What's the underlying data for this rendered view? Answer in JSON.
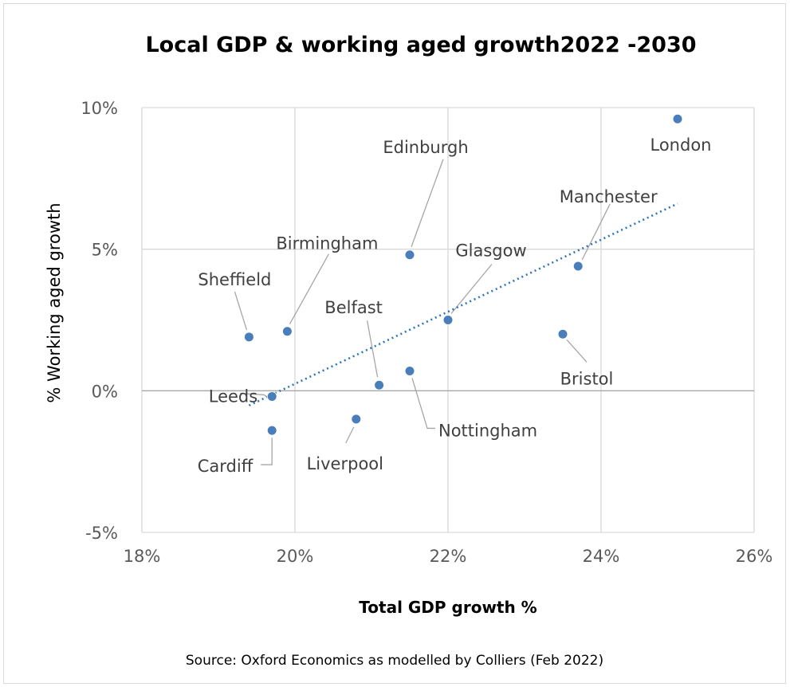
{
  "chart_data": {
    "type": "scatter",
    "title": "Local GDP & working aged growth2022 -2030",
    "xlabel": "Total GDP growth %",
    "ylabel": "% Working aged growth",
    "xlim": [
      18,
      26
    ],
    "ylim": [
      -5,
      10
    ],
    "x_ticks": [
      "18%",
      "20%",
      "22%",
      "24%",
      "26%"
    ],
    "y_ticks": [
      "10%",
      "5%",
      "0%",
      "-5%"
    ],
    "grid": true,
    "legend": "none",
    "trendline": "linear-dotted",
    "marker_color": "#4a7ebb",
    "trend_color": "#2e75b6",
    "points": [
      {
        "label": "London",
        "x": 25.0,
        "y": 9.6
      },
      {
        "label": "Edinburgh",
        "x": 21.5,
        "y": 4.8
      },
      {
        "label": "Manchester",
        "x": 23.7,
        "y": 4.4
      },
      {
        "label": "Birmingham",
        "x": 19.9,
        "y": 2.1
      },
      {
        "label": "Glasgow",
        "x": 22.0,
        "y": 2.5
      },
      {
        "label": "Sheffield",
        "x": 19.4,
        "y": 1.9
      },
      {
        "label": "Belfast",
        "x": 21.1,
        "y": 0.2
      },
      {
        "label": "Bristol",
        "x": 23.5,
        "y": 2.0
      },
      {
        "label": "Leeds",
        "x": 19.7,
        "y": -0.2
      },
      {
        "label": "Nottingham",
        "x": 21.5,
        "y": 0.7
      },
      {
        "label": "Liverpool",
        "x": 20.8,
        "y": -1.0
      },
      {
        "label": "Cardiff",
        "x": 19.7,
        "y": -1.4
      }
    ]
  },
  "source": "Source: Oxford Economics as modelled by Colliers (Feb 2022)"
}
